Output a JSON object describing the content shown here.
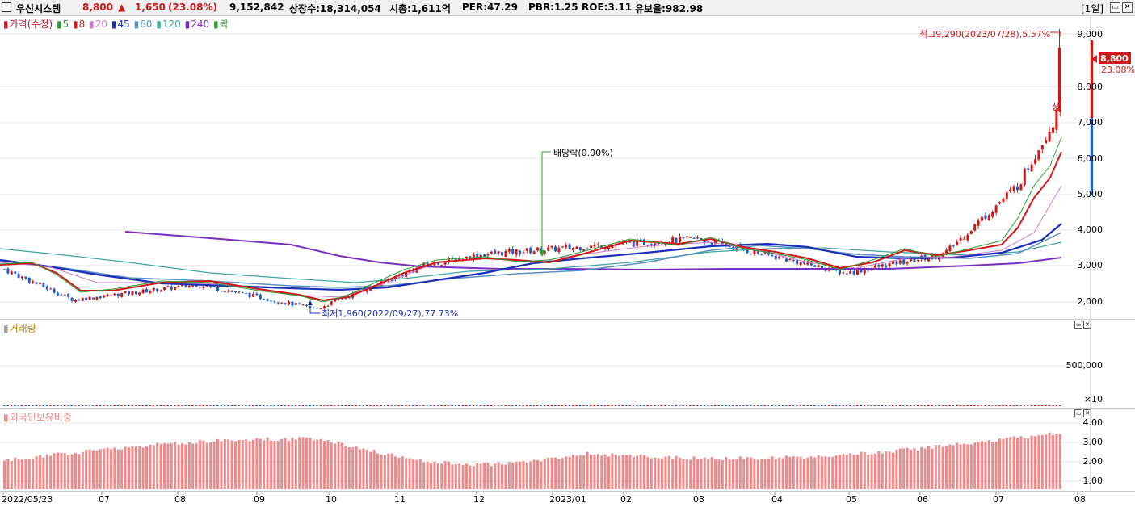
{
  "header": {
    "name": "우신시스템",
    "price": "8,800",
    "change_arrow": "▲",
    "change": "1,650",
    "change_pct": "(23.08%)",
    "volume": "9,152,842",
    "listed_shares": "상장수:18,314,054",
    "market_cap": "시총:1,611억",
    "per": "PER:47.29",
    "pbr": "PBR:1.25",
    "roe": "ROE:3.11",
    "retention": "유보율:982.98",
    "period": "[1일]"
  },
  "price_pane": {
    "legend": [
      {
        "label": "가격(수정)",
        "color": "#c8102e"
      },
      {
        "label": "5",
        "color": "#2e9e2e"
      },
      {
        "label": "8",
        "color": "#d01818"
      },
      {
        "label": "20",
        "color": "#d07ad0"
      },
      {
        "label": "45",
        "color": "#1c2fb8"
      },
      {
        "label": "60",
        "color": "#5a8fc6"
      },
      {
        "label": "120",
        "color": "#3aa6a0"
      },
      {
        "label": "240",
        "color": "#7a2fc0"
      },
      {
        "label": "락",
        "color": "#2e9e2e"
      }
    ],
    "y_ticks": [
      "9,000",
      "8,000",
      "7,000",
      "6,000",
      "5,000",
      "4,000",
      "3,000",
      "2,000"
    ],
    "current_price": "8,800",
    "current_pct": "23.08%",
    "high_annotation": "최고9,290(2023/07/28),5.57%",
    "low_annotation": "최저1,960(2022/09/27),77.73%",
    "dividend_annotation": "배당락(0.00%)",
    "up_marker": "상"
  },
  "volume_pane": {
    "legend": "거래량",
    "y_ticks": [
      "500,000",
      "×10"
    ]
  },
  "foreign_pane": {
    "legend": "외국인보유비중",
    "y_ticks": [
      "4.00",
      "3.00",
      "2.00",
      "1.00"
    ]
  },
  "x_ticks": [
    "2022/05/23",
    "07",
    "08",
    "09",
    "10",
    "11",
    "12",
    "2023/01",
    "02",
    "03",
    "04",
    "05",
    "06",
    "07",
    "08"
  ],
  "colors": {
    "up": "#d01818",
    "down": "#1c5fc8",
    "foreign_bar": "#f08a8a"
  },
  "chart_data": {
    "type": "candlestick",
    "start": "2022/05/23",
    "end": "2023/07/28",
    "price_ylim": [
      1700,
      9500
    ],
    "key_points": [
      {
        "date": "2022/05/23",
        "close": 3000
      },
      {
        "date": "2022/06/20",
        "close": 2200
      },
      {
        "date": "2022/08/10",
        "close": 2600
      },
      {
        "date": "2022/09/27",
        "low": 1960
      },
      {
        "date": "2022/11/10",
        "close": 3100
      },
      {
        "date": "2022/12/05",
        "close": 3400
      },
      {
        "date": "2023/03/01",
        "close": 3800
      },
      {
        "date": "2023/05/01",
        "close": 2900
      },
      {
        "date": "2023/06/10",
        "close": 3400
      },
      {
        "date": "2023/07/10",
        "close": 5200
      },
      {
        "date": "2023/07/27",
        "close": 7150
      },
      {
        "date": "2023/07/28",
        "close": 8800,
        "high": 9290
      }
    ],
    "volume_ylim": [
      0,
      1000000
    ],
    "foreign_ratio_ylim": [
      0.5,
      4.3
    ]
  }
}
